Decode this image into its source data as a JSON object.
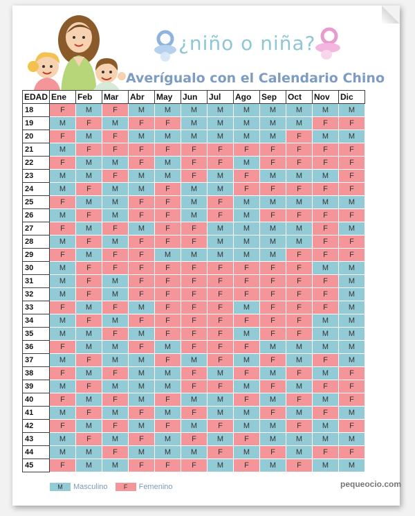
{
  "header": {
    "title": "¿niño o niña?",
    "subtitle": "Averígualo con el Calendario Chino"
  },
  "table": {
    "corner": "EDAD",
    "months": [
      "Ene",
      "Feb",
      "Mar",
      "Abr",
      "May",
      "Jun",
      "Jul",
      "Ago",
      "Sep",
      "Oct",
      "Nov",
      "Dic"
    ],
    "rows": [
      {
        "age": "18",
        "cells": [
          "F",
          "M",
          "F",
          "M",
          "M",
          "M",
          "M",
          "M",
          "M",
          "M",
          "M",
          "M"
        ]
      },
      {
        "age": "19",
        "cells": [
          "M",
          "F",
          "M",
          "F",
          "F",
          "M",
          "M",
          "M",
          "M",
          "M",
          "F",
          "F"
        ]
      },
      {
        "age": "20",
        "cells": [
          "F",
          "M",
          "F",
          "M",
          "M",
          "M",
          "M",
          "M",
          "M",
          "F",
          "M",
          "M"
        ]
      },
      {
        "age": "21",
        "cells": [
          "M",
          "F",
          "F",
          "F",
          "F",
          "F",
          "F",
          "F",
          "F",
          "F",
          "F",
          "F"
        ]
      },
      {
        "age": "22",
        "cells": [
          "F",
          "M",
          "M",
          "F",
          "M",
          "F",
          "F",
          "M",
          "F",
          "F",
          "F",
          "F"
        ]
      },
      {
        "age": "23",
        "cells": [
          "M",
          "M",
          "F",
          "M",
          "M",
          "F",
          "M",
          "F",
          "M",
          "M",
          "M",
          "F"
        ]
      },
      {
        "age": "24",
        "cells": [
          "M",
          "F",
          "M",
          "M",
          "F",
          "M",
          "M",
          "F",
          "F",
          "F",
          "F",
          "F"
        ]
      },
      {
        "age": "25",
        "cells": [
          "F",
          "M",
          "M",
          "F",
          "F",
          "M",
          "F",
          "M",
          "M",
          "M",
          "M",
          "M"
        ]
      },
      {
        "age": "26",
        "cells": [
          "M",
          "F",
          "M",
          "F",
          "F",
          "M",
          "F",
          "M",
          "F",
          "F",
          "F",
          "F"
        ]
      },
      {
        "age": "27",
        "cells": [
          "F",
          "M",
          "F",
          "M",
          "F",
          "F",
          "M",
          "M",
          "M",
          "M",
          "F",
          "M"
        ]
      },
      {
        "age": "28",
        "cells": [
          "M",
          "F",
          "M",
          "F",
          "F",
          "F",
          "M",
          "M",
          "M",
          "M",
          "F",
          "F"
        ]
      },
      {
        "age": "29",
        "cells": [
          "F",
          "M",
          "F",
          "F",
          "M",
          "M",
          "M",
          "M",
          "M",
          "F",
          "F",
          "F"
        ]
      },
      {
        "age": "30",
        "cells": [
          "M",
          "F",
          "F",
          "F",
          "F",
          "F",
          "F",
          "F",
          "F",
          "F",
          "M",
          "M"
        ]
      },
      {
        "age": "31",
        "cells": [
          "M",
          "F",
          "M",
          "F",
          "F",
          "F",
          "F",
          "F",
          "F",
          "F",
          "F",
          "M"
        ]
      },
      {
        "age": "32",
        "cells": [
          "M",
          "F",
          "M",
          "F",
          "F",
          "F",
          "F",
          "F",
          "F",
          "F",
          "F",
          "M"
        ]
      },
      {
        "age": "33",
        "cells": [
          "F",
          "M",
          "F",
          "M",
          "F",
          "F",
          "F",
          "M",
          "F",
          "F",
          "F",
          "M"
        ]
      },
      {
        "age": "34",
        "cells": [
          "M",
          "F",
          "M",
          "F",
          "F",
          "F",
          "F",
          "F",
          "F",
          "F",
          "M",
          "M"
        ]
      },
      {
        "age": "35",
        "cells": [
          "M",
          "M",
          "F",
          "M",
          "F",
          "F",
          "F",
          "M",
          "F",
          "F",
          "M",
          "M"
        ]
      },
      {
        "age": "36",
        "cells": [
          "F",
          "M",
          "M",
          "F",
          "M",
          "F",
          "F",
          "F",
          "M",
          "M",
          "M",
          "M"
        ]
      },
      {
        "age": "37",
        "cells": [
          "M",
          "F",
          "M",
          "M",
          "F",
          "M",
          "F",
          "M",
          "F",
          "M",
          "F",
          "M"
        ]
      },
      {
        "age": "38",
        "cells": [
          "F",
          "M",
          "F",
          "M",
          "M",
          "F",
          "M",
          "F",
          "M",
          "F",
          "M",
          "F"
        ]
      },
      {
        "age": "39",
        "cells": [
          "M",
          "F",
          "M",
          "M",
          "M",
          "F",
          "F",
          "M",
          "F",
          "M",
          "F",
          "F"
        ]
      },
      {
        "age": "40",
        "cells": [
          "F",
          "M",
          "F",
          "M",
          "F",
          "M",
          "M",
          "F",
          "M",
          "F",
          "M",
          "F"
        ]
      },
      {
        "age": "41",
        "cells": [
          "M",
          "F",
          "M",
          "F",
          "M",
          "F",
          "M",
          "M",
          "F",
          "M",
          "F",
          "M"
        ]
      },
      {
        "age": "42",
        "cells": [
          "F",
          "M",
          "F",
          "M",
          "F",
          "M",
          "F",
          "M",
          "M",
          "F",
          "M",
          "F"
        ]
      },
      {
        "age": "43",
        "cells": [
          "M",
          "F",
          "M",
          "F",
          "M",
          "F",
          "M",
          "F",
          "M",
          "M",
          "M",
          "M"
        ]
      },
      {
        "age": "44",
        "cells": [
          "M",
          "M",
          "F",
          "M",
          "M",
          "M",
          "F",
          "M",
          "F",
          "M",
          "F",
          "F"
        ]
      },
      {
        "age": "45",
        "cells": [
          "F",
          "M",
          "M",
          "F",
          "F",
          "F",
          "M",
          "F",
          "M",
          "F",
          "M",
          "M"
        ]
      }
    ]
  },
  "legend": {
    "male_code": "M",
    "male_label": "Masculino",
    "female_code": "F",
    "female_label": "Femenino"
  },
  "footer": {
    "site": "pequeocio.com"
  },
  "colors": {
    "male": "#92cbd6",
    "female": "#f4959a",
    "title": "#8fc6d4",
    "subtitle": "#7c9cc4"
  }
}
